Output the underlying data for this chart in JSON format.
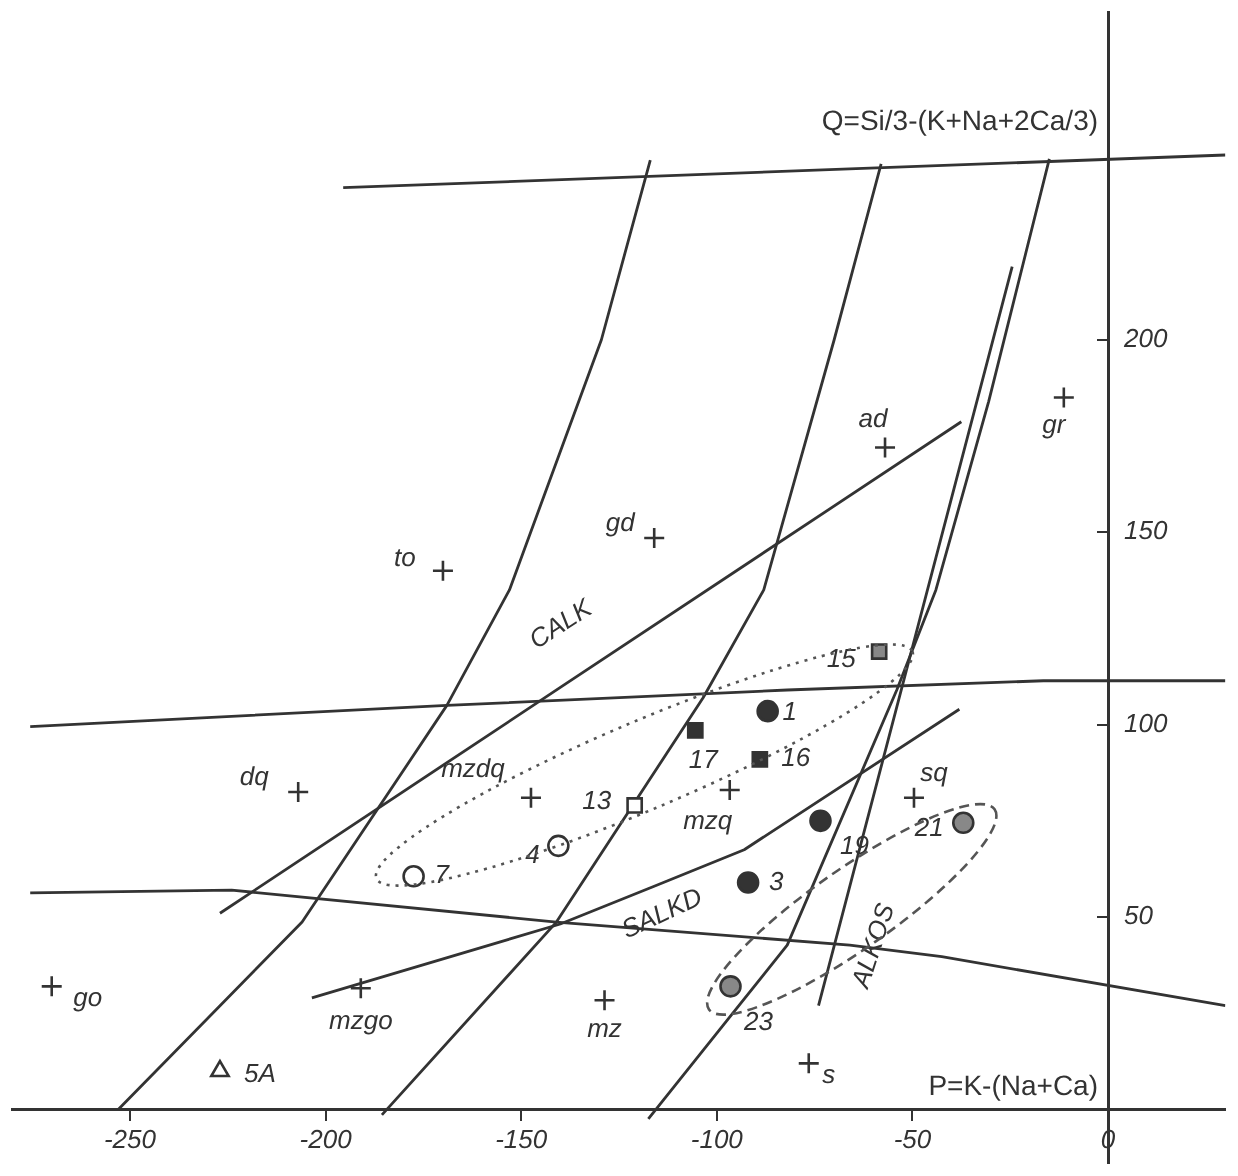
{
  "chart_data": {
    "type": "scatter",
    "xlabel": "P=K-(Na+Ca)",
    "ylabel": "Q=Si/3-(K+Na+2Ca/3)",
    "xlim": [
      -280,
      30
    ],
    "ylim": [
      -14,
      285
    ],
    "xticks": [
      -250,
      -200,
      -150,
      -100,
      -50,
      0
    ],
    "yticks": [
      50,
      100,
      150,
      200
    ],
    "grid": false,
    "series": [
      {
        "type": "scatter",
        "marker": "circle",
        "color": "#333333",
        "x": [
          -87,
          -92,
          -73.5
        ],
        "values": [
          103.5,
          59,
          75
        ]
      },
      {
        "type": "scatter",
        "marker": "square",
        "color": "#333333",
        "x": [
          -105.5,
          -89
        ],
        "values": [
          98.5,
          91
        ]
      },
      {
        "type": "scatter",
        "marker": "square",
        "color": "#888888",
        "x": [
          -58.5
        ],
        "values": [
          119
        ]
      },
      {
        "type": "scatter",
        "marker": "square",
        "color": "#ffffff",
        "x": [
          -121
        ],
        "values": [
          79
        ]
      },
      {
        "type": "scatter",
        "marker": "circle",
        "color": "#ffffff",
        "x": [
          -177.5,
          -140.5
        ],
        "values": [
          60.6,
          68.5
        ]
      },
      {
        "type": "scatter",
        "marker": "circle",
        "color": "#888888",
        "x": [
          -37,
          -96.5
        ],
        "values": [
          74.5,
          32
        ]
      },
      {
        "type": "scatter",
        "marker": "triangle",
        "color": "#ffffff",
        "x": [
          -227
        ],
        "values": [
          10
        ]
      },
      {
        "type": "scatter",
        "marker": "cross",
        "color": "#333333",
        "x": [
          -270,
          -191,
          -128.7,
          -76.5,
          -147.5,
          -96.7,
          -49.6,
          -207,
          -170,
          -116,
          -57,
          -11.3
        ],
        "values": [
          32,
          31.5,
          28.4,
          12,
          81,
          83,
          81,
          82.5,
          140,
          148.5,
          172,
          185
        ]
      },
      {
        "type": "line",
        "marker": "none",
        "color": "#333333",
        "x": [
          -195.5,
          30
        ],
        "values": [
          239.5,
          248
        ]
      },
      {
        "type": "line",
        "marker": "none",
        "color": "#333333",
        "x": [
          -275.5,
          -169,
          -82,
          -16.5,
          30
        ],
        "values": [
          99.5,
          105,
          109,
          111.4,
          111.4
        ]
      },
      {
        "type": "line",
        "marker": "none",
        "color": "#333333",
        "x": [
          -275.5,
          -224,
          -141,
          -66,
          -42.5,
          30
        ],
        "values": [
          56.3,
          57,
          48.7,
          42.7,
          39.7,
          27
        ]
      },
      {
        "type": "line",
        "marker": "none",
        "color": "#333333",
        "x": [
          -253,
          -206,
          -169,
          -153,
          -129.5,
          -117
        ],
        "values": [
          0,
          48.7,
          105,
          135,
          200,
          246.7
        ]
      },
      {
        "type": "line",
        "marker": "none",
        "color": "#333333",
        "x": [
          -185.6,
          -141,
          -103.5,
          -88,
          -70,
          -58
        ],
        "values": [
          -1.4,
          48.7,
          107,
          135,
          200,
          245.7
        ]
      },
      {
        "type": "line",
        "marker": "none",
        "color": "#333333",
        "x": [
          -117.5,
          -82,
          -54,
          -44,
          -30.5,
          -15
        ],
        "values": [
          -2.4,
          42.7,
          109,
          135,
          184,
          247
        ]
      },
      {
        "type": "line",
        "marker": "none",
        "color": "#333333",
        "x": [
          -74,
          -70,
          -24.5
        ],
        "values": [
          27,
          42.5,
          219
        ]
      },
      {
        "type": "line",
        "marker": "none",
        "color": "#333333",
        "x": [
          -227,
          -139.8,
          -37.5
        ],
        "values": [
          51,
          109.8,
          178.7
        ]
      },
      {
        "type": "line",
        "marker": "none",
        "color": "#333333",
        "x": [
          -203.5,
          -140,
          -116,
          -93,
          -38
        ],
        "values": [
          29,
          48.2,
          58,
          67.5,
          104
        ]
      }
    ],
    "annotations": [
      {
        "text": "15",
        "x": -58.5,
        "y": 119
      },
      {
        "text": "1",
        "x": -87,
        "y": 103.5
      },
      {
        "text": "17",
        "x": -105.5,
        "y": 98.5
      },
      {
        "text": "16",
        "x": -89,
        "y": 91
      },
      {
        "text": "13",
        "x": -121,
        "y": 79
      },
      {
        "text": "4",
        "x": -140.5,
        "y": 68.5
      },
      {
        "text": "7",
        "x": -177.5,
        "y": 60.6
      },
      {
        "text": "19",
        "x": -73.5,
        "y": 75
      },
      {
        "text": "21",
        "x": -37,
        "y": 74.5
      },
      {
        "text": "3",
        "x": -92,
        "y": 59
      },
      {
        "text": "23",
        "x": -96.5,
        "y": 32
      },
      {
        "text": "5A",
        "x": -227,
        "y": 10
      },
      {
        "text": "go",
        "x": -270,
        "y": 32
      },
      {
        "text": "mzgo",
        "x": -191,
        "y": 31.5
      },
      {
        "text": "mz",
        "x": -128.7,
        "y": 28.4
      },
      {
        "text": "s",
        "x": -76.5,
        "y": 12
      },
      {
        "text": "mzdq",
        "x": -147.5,
        "y": 81
      },
      {
        "text": "mzq",
        "x": -96.7,
        "y": 83
      },
      {
        "text": "sq",
        "x": -49.6,
        "y": 81
      },
      {
        "text": "dq",
        "x": -207,
        "y": 82.5
      },
      {
        "text": "to",
        "x": -170,
        "y": 140
      },
      {
        "text": "gd",
        "x": -116,
        "y": 148.5
      },
      {
        "text": "ad",
        "x": -57,
        "y": 172
      },
      {
        "text": "gr",
        "x": -11.3,
        "y": 185
      },
      {
        "text": "CALK",
        "x": -139.8,
        "y": 109.8
      },
      {
        "text": "SALKD",
        "x": -116,
        "y": 58
      },
      {
        "text": "ALKOS",
        "x": -70,
        "y": 42.5
      }
    ]
  }
}
